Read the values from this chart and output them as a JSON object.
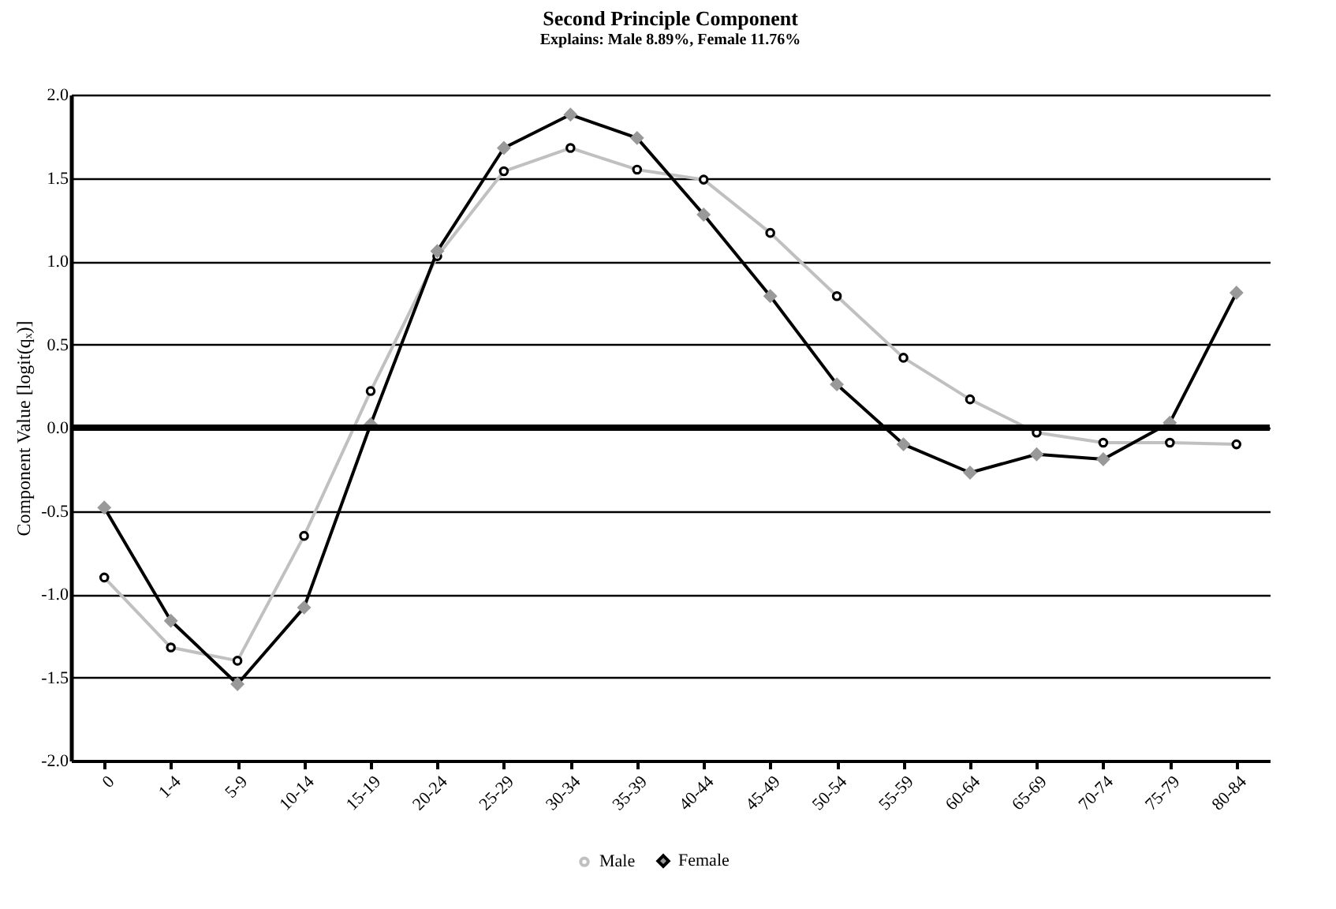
{
  "chart_data": {
    "type": "line",
    "title": "Second Principle Component",
    "subtitle": "Explains: Male 8.89%, Female 11.76%",
    "ylabel": "Component Value [logit(qₓ)]",
    "categories": [
      "0",
      "1-4",
      "5-9",
      "10-14",
      "15-19",
      "20-24",
      "25-29",
      "30-34",
      "35-39",
      "40-44",
      "45-49",
      "50-54",
      "55-59",
      "60-64",
      "65-69",
      "70-74",
      "75-79",
      "80-84"
    ],
    "series": [
      {
        "name": "Male",
        "color": "#c0c0c0",
        "marker": "circle",
        "values": [
          -0.9,
          -1.32,
          -1.4,
          -0.65,
          0.22,
          1.03,
          1.54,
          1.68,
          1.55,
          1.49,
          1.17,
          0.79,
          0.42,
          0.17,
          -0.03,
          -0.09,
          -0.09,
          -0.1
        ]
      },
      {
        "name": "Female",
        "color": "#000000",
        "marker": "diamond",
        "values": [
          -0.48,
          -1.16,
          -1.54,
          -1.08,
          0.02,
          1.06,
          1.68,
          1.88,
          1.74,
          1.28,
          0.79,
          0.26,
          -0.1,
          -0.27,
          -0.16,
          -0.19,
          0.03,
          0.81
        ]
      }
    ],
    "ylim": [
      -2,
      2
    ],
    "yticks": [
      {
        "value": -2,
        "label": "-2.0"
      },
      {
        "value": -1.5,
        "label": "-1.5"
      },
      {
        "value": -1,
        "label": "-1.0"
      },
      {
        "value": -0.5,
        "label": "-0.5"
      },
      {
        "value": 0,
        "label": "0.0"
      },
      {
        "value": 0.5,
        "label": "0.5"
      },
      {
        "value": 1,
        "label": "1.0"
      },
      {
        "value": 1.5,
        "label": "1.5"
      },
      {
        "value": 2,
        "label": "2.0"
      }
    ],
    "grid": "y",
    "legend": "bottom",
    "line_style": "solid",
    "ref_lines": [
      {
        "axis": "y",
        "value": 0,
        "color": "#000000"
      }
    ]
  }
}
